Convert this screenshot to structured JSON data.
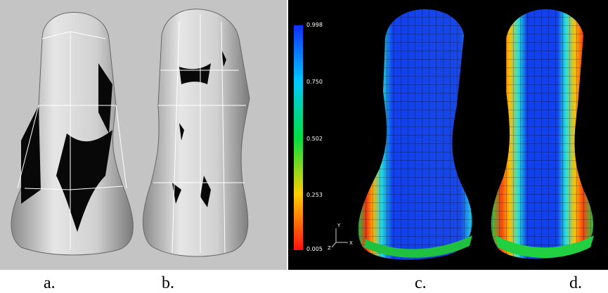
{
  "colorbar": {
    "labels": [
      "0.998",
      "0.750",
      "0.502",
      "0.253",
      "0.005"
    ]
  },
  "axes": {
    "y": "Y",
    "z": "Z",
    "x": "X"
  },
  "panels": [
    "a.",
    "b.",
    "c.",
    "d."
  ]
}
